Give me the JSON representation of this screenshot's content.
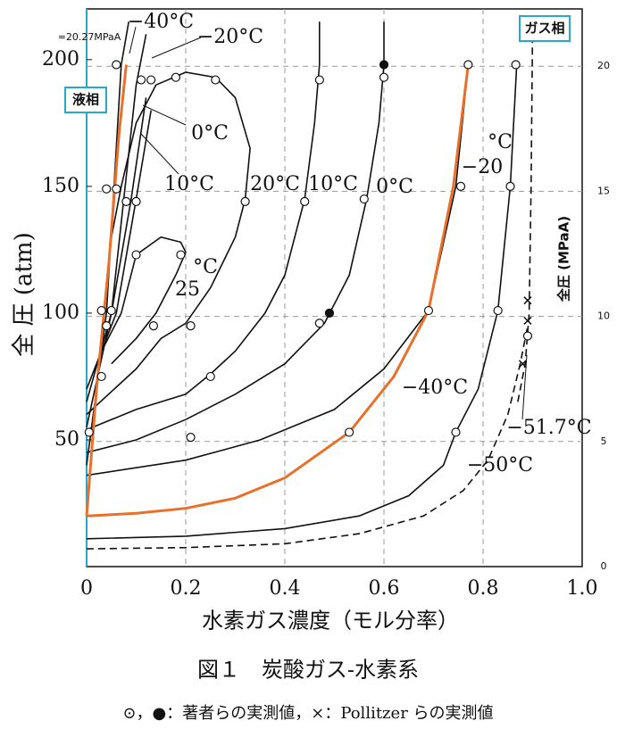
{
  "chart_data": {
    "type": "line",
    "x_label": "水素ガス濃度（モル分率）",
    "y_label": "全 圧 (atm)",
    "y2_label": "全圧 (MPaA)",
    "caption": "図１　炭酸ガス-水素系",
    "footnote": "⊙，●：著者らの実測値，×：Pollitzer らの実測値",
    "xlim": [
      0,
      1
    ],
    "ylim": [
      0,
      220
    ],
    "y2lim": [
      0,
      22.29
    ],
    "xticks": [
      0,
      0.2,
      0.4,
      0.6,
      0.8,
      {
        "value": 1,
        "label": "1.0"
      }
    ],
    "yticks": [
      50,
      100,
      150,
      200
    ],
    "y2ticks": [
      0,
      5,
      10,
      15,
      20
    ],
    "grid": true,
    "annotations": [
      "−40°C",
      "−20°C",
      "0°C",
      "10°C",
      "20°C",
      "10°C",
      "0°C",
      "°C",
      "−20",
      "25",
      "°C",
      "−40°C",
      "−51.7°C",
      "−50°C",
      "液相",
      "ガス相",
      "=20.27MPaA"
    ],
    "series": [
      {
        "type": "line",
        "color": "#111",
        "dashed": false,
        "x": [
          0,
          0.2,
          0.4,
          0.55,
          0.65,
          0.72,
          0.745,
          0.79,
          0.83,
          0.855,
          0.868
        ],
        "values": [
          11,
          12,
          15,
          20,
          28,
          40,
          53,
          70,
          101,
          150,
          198
        ]
      },
      {
        "type": "line",
        "color": "#111",
        "dashed": true,
        "x": [
          0,
          0.2,
          0.4,
          0.55,
          0.68,
          0.76,
          0.81,
          0.85,
          0.875,
          0.89
        ],
        "values": [
          7,
          7.5,
          9,
          13,
          20,
          30,
          42,
          60,
          80,
          95
        ]
      },
      {
        "type": "line",
        "color": "#111",
        "dashed": true,
        "x": [
          0.87,
          0.885,
          0.893,
          0.897,
          0.9
        ],
        "values": [
          65,
          80,
          100,
          150,
          215
        ]
      },
      {
        "type": "line",
        "color": "#111",
        "dashed": false,
        "x": [
          0,
          0.2,
          0.35,
          0.5,
          0.6,
          0.69,
          0.745,
          0.77
        ],
        "values": [
          36,
          42,
          50,
          62,
          78,
          101,
          150,
          198
        ]
      },
      {
        "type": "line",
        "color": "#111",
        "dashed": false,
        "x": [
          0,
          0.1,
          0.2,
          0.3,
          0.4,
          0.48,
          0.53,
          0.565,
          0.59,
          0.6,
          0.6
        ],
        "values": [
          45,
          50,
          58,
          68,
          80,
          96,
          115,
          145,
          175,
          198,
          215
        ]
      },
      {
        "type": "line",
        "color": "#111",
        "dashed": false,
        "x": [
          0,
          0.1,
          0.2,
          0.25,
          0.3,
          0.36,
          0.4,
          0.44,
          0.46,
          0.47,
          0.47
        ],
        "values": [
          54,
          62,
          68,
          76,
          85,
          100,
          115,
          145,
          175,
          198,
          215
        ]
      },
      {
        "type": "line",
        "color": "#111",
        "dashed": false,
        "x": [
          0,
          0.1,
          0.15,
          0.2,
          0.25,
          0.3,
          0.32,
          0.33,
          0.3,
          0.26,
          0.2,
          0.14,
          0.1,
          0.07,
          0.05
        ],
        "values": [
          60,
          78,
          90,
          96,
          110,
          130,
          145,
          165,
          185,
          193,
          195,
          190,
          175,
          150,
          130
        ]
      },
      {
        "type": "line",
        "color": "#111",
        "dashed": false,
        "x": [
          0.03,
          0.07,
          0.1,
          0.15,
          0.19,
          0.2,
          0.18,
          0.14,
          0.1,
          0.05
        ],
        "values": [
          85,
          100,
          123,
          130,
          128,
          124,
          115,
          100,
          90,
          80
        ]
      },
      {
        "type": "line",
        "color": "#111",
        "dashed": false,
        "x": [
          0,
          0.04,
          0.07,
          0.085
        ],
        "values": [
          40,
          100,
          198,
          215
        ]
      },
      {
        "type": "line",
        "color": "#111",
        "dashed": false,
        "x": [
          0,
          0.05,
          0.1,
          0.12
        ],
        "values": [
          55,
          100,
          190,
          210
        ]
      },
      {
        "type": "line",
        "color": "#111",
        "dashed": false,
        "x": [
          0,
          0.05,
          0.09,
          0.12
        ],
        "values": [
          65,
          100,
          145,
          185
        ]
      },
      {
        "type": "line",
        "color": "#111",
        "dashed": false,
        "x": [
          0,
          0.06,
          0.1,
          0.13
        ],
        "values": [
          70,
          100,
          145,
          180
        ]
      },
      {
        "type": "line",
        "color": "#e8702a",
        "dashed": false,
        "x": [
          0,
          0.1,
          0.2,
          0.3,
          0.4,
          0.53,
          0.62,
          0.69,
          0.74,
          0.77
        ],
        "values": [
          20,
          21,
          23,
          27,
          35,
          53,
          75,
          101,
          150,
          198
        ]
      },
      {
        "type": "line",
        "color": "#e8702a",
        "dashed": false,
        "x": [
          0,
          0.02,
          0.045,
          0.065,
          0.08
        ],
        "values": [
          20,
          70,
          120,
          170,
          198
        ]
      },
      {
        "type": "scatter",
        "marker": "open-circle",
        "color": "#111",
        "x": [
          0.06,
          0.11,
          0.13,
          0.18,
          0.26,
          0.47,
          0.6,
          0.77,
          0.866,
          0.04,
          0.06,
          0.08,
          0.1,
          0.32,
          0.44,
          0.56,
          0.755,
          0.855,
          0.1,
          0.19,
          0.03,
          0.05,
          0.04,
          0.135,
          0.21,
          0.47,
          0.69,
          0.83,
          0.89,
          0.25,
          0.03,
          0.21,
          0.53,
          0.745,
          0.005
        ],
        "values": [
          198,
          192,
          192,
          193,
          192,
          192,
          193,
          198,
          198,
          149,
          149,
          144,
          144,
          144,
          144,
          145,
          150,
          150,
          123,
          123,
          101,
          101,
          95,
          95,
          95,
          96,
          101,
          101,
          91,
          75,
          75,
          51,
          53,
          53,
          53
        ]
      },
      {
        "type": "scatter",
        "marker": "filled-circle",
        "color": "#111",
        "x": [
          0.6,
          0.49
        ],
        "values": [
          198,
          100
        ]
      },
      {
        "type": "scatter",
        "marker": "cross",
        "color": "#111",
        "x": [
          0.89,
          0.89,
          0.88
        ],
        "values": [
          105,
          97,
          80
        ]
      }
    ]
  }
}
